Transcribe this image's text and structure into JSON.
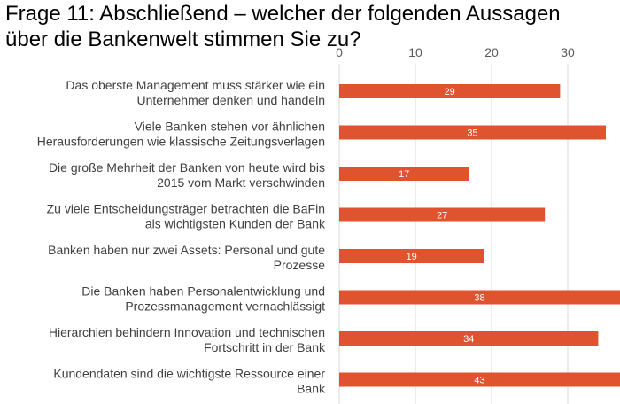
{
  "title_lines": [
    "Frage 11: Abschließend – welcher der folgenden Aussagen",
    "über die Bankenwelt stimmen Sie zu?"
  ],
  "colors": {
    "bar": "#E0532F",
    "grid": "#D9D9D9",
    "data_label": "#FFFFFF"
  },
  "chart_data": {
    "type": "bar",
    "orientation": "horizontal",
    "title": "Frage 11: Abschließend – welcher der folgenden Aussagen über die Bankenwelt stimmen Sie zu?",
    "xlabel": "",
    "ylabel": "",
    "xlim": [
      0,
      40
    ],
    "x_ticks": [
      0,
      10,
      20,
      30
    ],
    "x_axis_position": "top",
    "grid": "vertical",
    "legend": "none",
    "categories": [
      [
        "Das oberste Management muss stärker wie ein",
        "Unternehmer denken und handeln"
      ],
      [
        "Viele Banken stehen vor ähnlichen",
        "Herausforderungen wie klassische Zeitungsverlagen"
      ],
      [
        "Die große Mehrheit der Banken von heute wird bis",
        "2015 vom Markt verschwinden"
      ],
      [
        "Zu viele Entscheidungsträger betrachten die BaFin",
        "als wichtigsten Kunden der Bank"
      ],
      [
        "Banken haben nur zwei Assets: Personal und gute",
        "Prozesse"
      ],
      [
        "Die Banken haben Personalentwicklung und",
        "Prozessmanagement vernachlässigt"
      ],
      [
        "Hierarchien behindern Innovation und technischen",
        "Fortschritt in der Bank"
      ],
      [
        "Kundendaten sind die wichtigste Ressource einer",
        "Bank"
      ]
    ],
    "values": [
      29,
      35,
      17,
      27,
      19,
      38,
      34,
      43
    ],
    "data_labels": true
  }
}
